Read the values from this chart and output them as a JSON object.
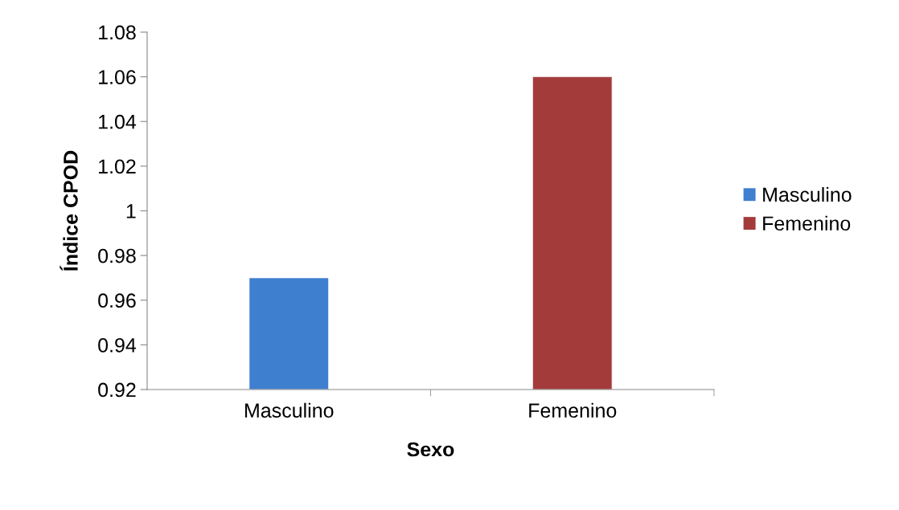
{
  "chart_data": {
    "type": "bar",
    "xlabel": "Sexo",
    "ylabel": "Índice CPOD",
    "categories": [
      "Masculino",
      "Femenino"
    ],
    "series": [
      {
        "name": "Masculino",
        "color": "#3f7fcf",
        "values": [
          0.97,
          null
        ]
      },
      {
        "name": "Femenino",
        "color": "#a33b3b",
        "values": [
          null,
          1.06
        ]
      }
    ],
    "ylim": [
      0.92,
      1.08
    ],
    "yticks": [
      0.92,
      0.94,
      0.96,
      0.98,
      1,
      1.02,
      1.04,
      1.06,
      1.08
    ],
    "grid": false,
    "legend": "right"
  }
}
